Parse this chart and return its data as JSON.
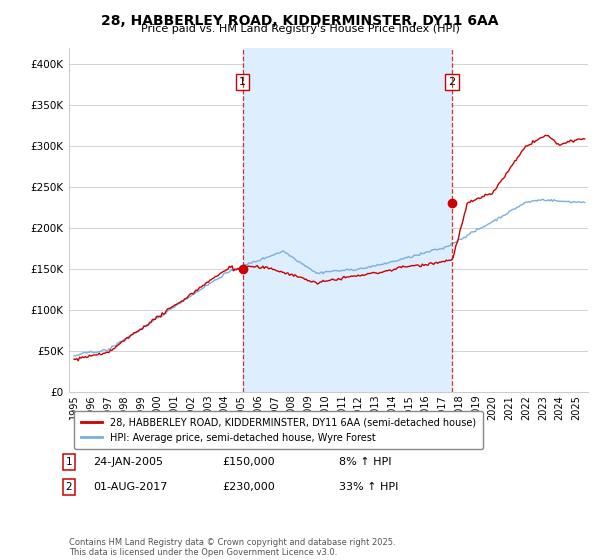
{
  "title1": "28, HABBERLEY ROAD, KIDDERMINSTER, DY11 6AA",
  "title2": "Price paid vs. HM Land Registry's House Price Index (HPI)",
  "ylabel_ticks": [
    "£0",
    "£50K",
    "£100K",
    "£150K",
    "£200K",
    "£250K",
    "£300K",
    "£350K",
    "£400K"
  ],
  "ytick_values": [
    0,
    50000,
    100000,
    150000,
    200000,
    250000,
    300000,
    350000,
    400000
  ],
  "ylim": [
    0,
    420000
  ],
  "xlim_start": 1994.7,
  "xlim_end": 2025.7,
  "xtick_years": [
    1995,
    1996,
    1997,
    1998,
    1999,
    2000,
    2001,
    2002,
    2003,
    2004,
    2005,
    2006,
    2007,
    2008,
    2009,
    2010,
    2011,
    2012,
    2013,
    2014,
    2015,
    2016,
    2017,
    2018,
    2019,
    2020,
    2021,
    2022,
    2023,
    2024,
    2025
  ],
  "red_line_color": "#cc0000",
  "blue_line_color": "#7aafe0",
  "vline_color": "#cc0000",
  "marker1_x": 2005.07,
  "marker2_x": 2017.58,
  "transaction1": {
    "date": "24-JAN-2005",
    "price": "£150,000",
    "pct": "8% ↑ HPI",
    "label": "1"
  },
  "transaction2": {
    "date": "01-AUG-2017",
    "price": "£230,000",
    "pct": "33% ↑ HPI",
    "label": "2"
  },
  "legend_label_red": "28, HABBERLEY ROAD, KIDDERMINSTER, DY11 6AA (semi-detached house)",
  "legend_label_blue": "HPI: Average price, semi-detached house, Wyre Forest",
  "footnote": "Contains HM Land Registry data © Crown copyright and database right 2025.\nThis data is licensed under the Open Government Licence v3.0.",
  "background_color": "#ffffff",
  "plot_bg_color": "#ffffff",
  "between_vlines_color": "#ddeeff",
  "grid_color": "#cccccc"
}
